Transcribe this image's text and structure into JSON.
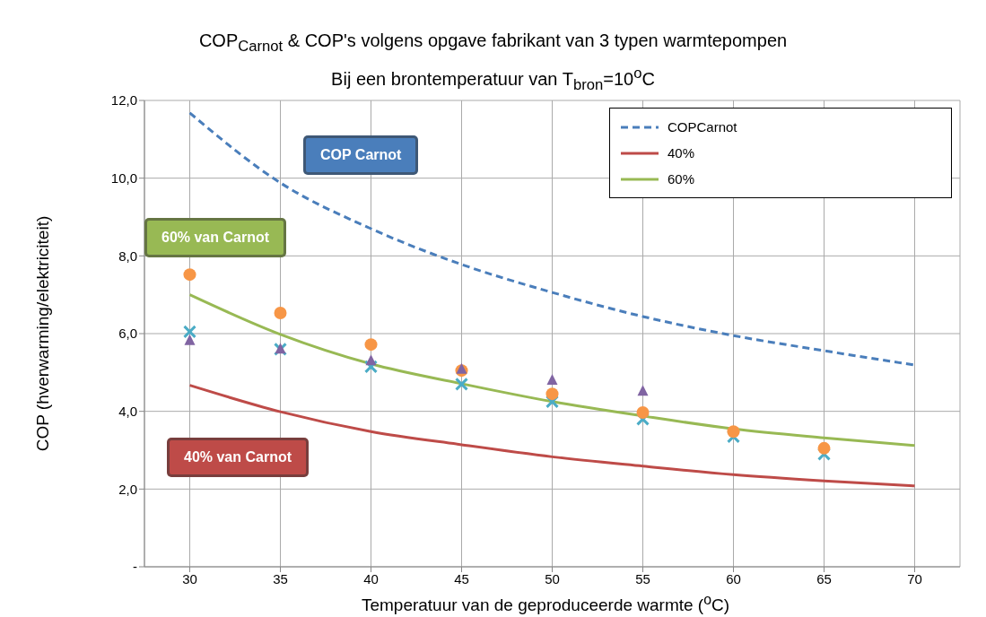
{
  "chart_data": {
    "type": "line",
    "title": "COP$_{Carnot}$ & COP's volgens opgave fabrikant van 3 typen warmtepompen",
    "subtitle": "Bij een brontemperatuur van T$_{bron}$=10$^{o}$C",
    "xlabel": "Temperatuur van de geproduceerde warmte  ($^{o}$C)",
    "ylabel": "COP  (hverwarming/elektriciteit)",
    "x": [
      30,
      35,
      40,
      45,
      50,
      55,
      60,
      65,
      70
    ],
    "series": [
      {
        "name": "COPCarnot",
        "line_style": "dashed",
        "marker": "none",
        "color": "#4a7ebb",
        "values": [
          11.68,
          9.88,
          8.7,
          7.78,
          7.06,
          6.44,
          5.95,
          5.56,
          5.19
        ]
      },
      {
        "name": "40%",
        "line_style": "solid",
        "marker": "none",
        "color": "#be4b48",
        "values": [
          4.67,
          3.99,
          3.48,
          3.14,
          2.83,
          2.59,
          2.37,
          2.21,
          2.08
        ]
      },
      {
        "name": "60%",
        "line_style": "solid",
        "marker": "none",
        "color": "#98b954",
        "values": [
          7.0,
          5.98,
          5.22,
          4.71,
          4.25,
          3.88,
          3.55,
          3.32,
          3.12
        ]
      },
      {
        "type": "scatter",
        "marker": "cross",
        "color": "#4bacc6",
        "values": [
          6.05,
          5.6,
          5.15,
          4.7,
          4.25,
          3.8,
          3.35,
          2.9,
          null
        ]
      },
      {
        "type": "scatter",
        "marker": "circle",
        "color": "#f79646",
        "values": [
          7.52,
          6.53,
          5.72,
          5.05,
          4.45,
          3.97,
          3.48,
          3.05,
          null
        ]
      },
      {
        "type": "scatter",
        "marker": "triangle",
        "color": "#8064a2",
        "values": [
          5.82,
          5.6,
          5.3,
          5.08,
          4.8,
          4.52,
          null,
          null,
          null
        ]
      }
    ],
    "annotations": [
      "COP Carnot",
      "40% van Carnot",
      "60% van Carnot"
    ],
    "xlim": [
      27.5,
      72.5
    ],
    "xticks": [
      30,
      35,
      40,
      45,
      50,
      55,
      60,
      65,
      70
    ],
    "ylim": [
      0,
      12
    ],
    "yticks": [
      {
        "value": 0,
        "label": "-"
      },
      {
        "value": 2,
        "label": "2,0"
      },
      {
        "value": 4,
        "label": "4,0"
      },
      {
        "value": 6,
        "label": "6,0"
      },
      {
        "value": 8,
        "label": "8,0"
      },
      {
        "value": 10,
        "label": "10,0"
      },
      {
        "value": 12,
        "label": "12,0"
      }
    ],
    "grid": true,
    "legend": "top right"
  }
}
